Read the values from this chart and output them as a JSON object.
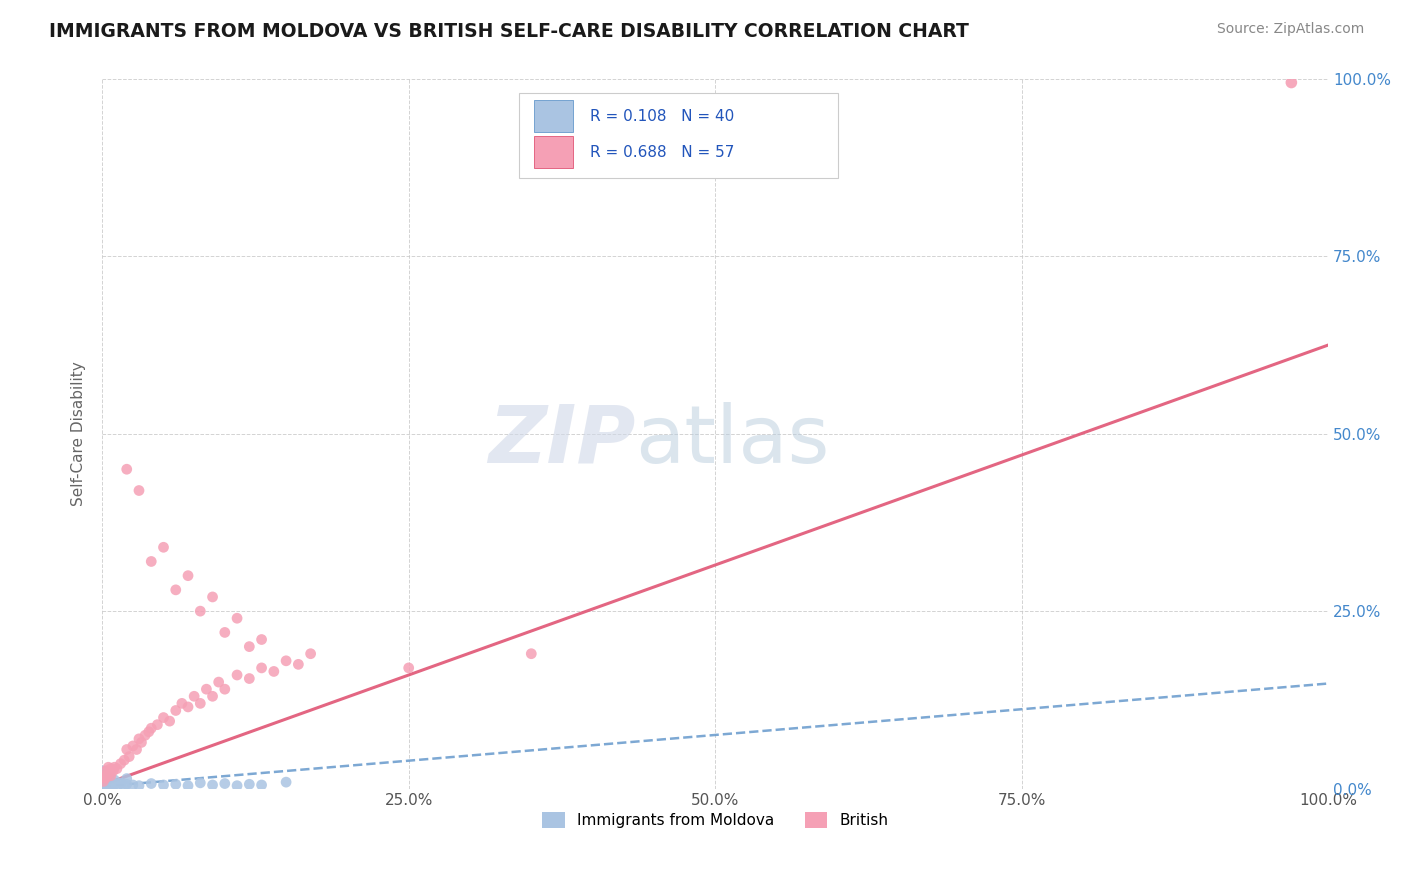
{
  "title": "IMMIGRANTS FROM MOLDOVA VS BRITISH SELF-CARE DISABILITY CORRELATION CHART",
  "source": "Source: ZipAtlas.com",
  "ylabel": "Self-Care Disability",
  "xlim": [
    0,
    1.0
  ],
  "ylim": [
    0,
    1.0
  ],
  "xtick_labels": [
    "0.0%",
    "25.0%",
    "50.0%",
    "75.0%",
    "100.0%"
  ],
  "xtick_vals": [
    0.0,
    0.25,
    0.5,
    0.75,
    1.0
  ],
  "ytick_labels_right": [
    "100.0%",
    "75.0%",
    "50.0%",
    "25.0%",
    "0.0%"
  ],
  "ytick_vals": [
    1.0,
    0.75,
    0.5,
    0.25,
    0.0
  ],
  "background_color": "#ffffff",
  "grid_color": "#c8c8c8",
  "watermark_zip": "ZIP",
  "watermark_atlas": "atlas",
  "legend_r1": "R = 0.108",
  "legend_n1": "N = 40",
  "legend_r2": "R = 0.688",
  "legend_n2": "N = 57",
  "color_moldova": "#aac4e2",
  "color_british": "#f5a0b5",
  "color_moldova_line": "#6699cc",
  "color_british_line": "#e05575",
  "label_moldova": "Immigrants from Moldova",
  "label_british": "British",
  "title_color": "#1a1a1a",
  "axis_label_color": "#666666",
  "legend_text_color": "#2255bb",
  "right_tick_color": "#4488cc",
  "moldova_line_slope": 0.145,
  "moldova_line_intercept": 0.003,
  "british_line_slope": 0.62,
  "british_line_intercept": 0.005,
  "british_outlier": [
    0.97,
    0.995
  ],
  "moldova_scatter": [
    [
      0.001,
      0.008
    ],
    [
      0.002,
      0.005
    ],
    [
      0.003,
      0.003
    ],
    [
      0.004,
      0.006
    ],
    [
      0.005,
      0.004
    ],
    [
      0.006,
      0.007
    ],
    [
      0.007,
      0.003
    ],
    [
      0.008,
      0.009
    ],
    [
      0.009,
      0.005
    ],
    [
      0.01,
      0.006
    ],
    [
      0.012,
      0.004
    ],
    [
      0.015,
      0.007
    ],
    [
      0.001,
      0.025
    ],
    [
      0.002,
      0.02
    ],
    [
      0.003,
      0.018
    ],
    [
      0.018,
      0.004
    ],
    [
      0.02,
      0.006
    ],
    [
      0.025,
      0.005
    ],
    [
      0.03,
      0.004
    ],
    [
      0.04,
      0.007
    ],
    [
      0.05,
      0.005
    ],
    [
      0.06,
      0.006
    ],
    [
      0.07,
      0.004
    ],
    [
      0.08,
      0.008
    ],
    [
      0.09,
      0.005
    ],
    [
      0.1,
      0.007
    ],
    [
      0.11,
      0.004
    ],
    [
      0.12,
      0.006
    ],
    [
      0.13,
      0.005
    ],
    [
      0.15,
      0.009
    ],
    [
      0.003,
      0.012
    ],
    [
      0.005,
      0.015
    ],
    [
      0.007,
      0.01
    ],
    [
      0.01,
      0.012
    ],
    [
      0.015,
      0.008
    ],
    [
      0.02,
      0.014
    ],
    [
      0.001,
      0.005
    ],
    [
      0.002,
      0.003
    ],
    [
      0.004,
      0.008
    ],
    [
      0.006,
      0.004
    ]
  ],
  "british_scatter": [
    [
      0.003,
      0.015
    ],
    [
      0.005,
      0.02
    ],
    [
      0.007,
      0.018
    ],
    [
      0.009,
      0.025
    ],
    [
      0.01,
      0.03
    ],
    [
      0.012,
      0.028
    ],
    [
      0.015,
      0.035
    ],
    [
      0.018,
      0.04
    ],
    [
      0.02,
      0.055
    ],
    [
      0.022,
      0.045
    ],
    [
      0.025,
      0.06
    ],
    [
      0.028,
      0.055
    ],
    [
      0.03,
      0.07
    ],
    [
      0.032,
      0.065
    ],
    [
      0.035,
      0.075
    ],
    [
      0.038,
      0.08
    ],
    [
      0.04,
      0.085
    ],
    [
      0.045,
      0.09
    ],
    [
      0.05,
      0.1
    ],
    [
      0.055,
      0.095
    ],
    [
      0.06,
      0.11
    ],
    [
      0.065,
      0.12
    ],
    [
      0.07,
      0.115
    ],
    [
      0.075,
      0.13
    ],
    [
      0.08,
      0.12
    ],
    [
      0.085,
      0.14
    ],
    [
      0.09,
      0.13
    ],
    [
      0.095,
      0.15
    ],
    [
      0.1,
      0.14
    ],
    [
      0.11,
      0.16
    ],
    [
      0.12,
      0.155
    ],
    [
      0.13,
      0.17
    ],
    [
      0.14,
      0.165
    ],
    [
      0.15,
      0.18
    ],
    [
      0.16,
      0.175
    ],
    [
      0.17,
      0.19
    ],
    [
      0.02,
      0.45
    ],
    [
      0.03,
      0.42
    ],
    [
      0.04,
      0.32
    ],
    [
      0.05,
      0.34
    ],
    [
      0.06,
      0.28
    ],
    [
      0.07,
      0.3
    ],
    [
      0.08,
      0.25
    ],
    [
      0.09,
      0.27
    ],
    [
      0.1,
      0.22
    ],
    [
      0.11,
      0.24
    ],
    [
      0.12,
      0.2
    ],
    [
      0.13,
      0.21
    ],
    [
      0.25,
      0.17
    ],
    [
      0.35,
      0.19
    ],
    [
      0.001,
      0.01
    ],
    [
      0.002,
      0.015
    ],
    [
      0.003,
      0.025
    ],
    [
      0.004,
      0.02
    ],
    [
      0.005,
      0.03
    ],
    [
      0.006,
      0.022
    ],
    [
      0.007,
      0.028
    ]
  ]
}
